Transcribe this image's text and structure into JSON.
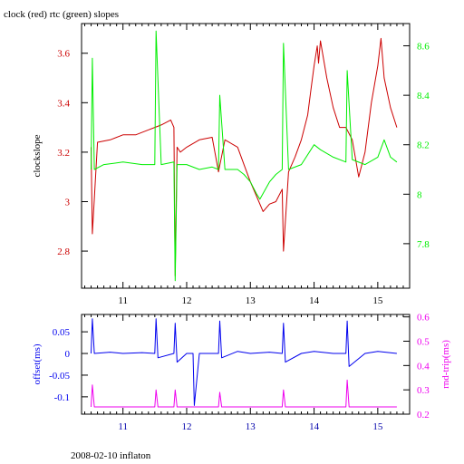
{
  "figure": {
    "title": "clock (red) rtc (green) slopes",
    "footer": "2008-02-10 inflaton"
  },
  "colors": {
    "clock": "#cc0000",
    "rtc": "#00ee00",
    "offset": "#0000ee",
    "rndtrip": "#ee00ee",
    "frame": "#000000"
  },
  "chart_data": [
    {
      "type": "line",
      "title": "clock (red) rtc (green) slopes",
      "xlabel": "",
      "ylabel": "clockslope",
      "y2label": "",
      "xlim": [
        10.35,
        15.5
      ],
      "ylim": [
        2.65,
        3.72
      ],
      "y2lim": [
        7.62,
        8.69
      ],
      "x_ticks": [
        11,
        12,
        13,
        14,
        15
      ],
      "y_ticks": [
        2.8,
        3,
        3.2,
        3.4,
        3.6
      ],
      "y_tick_labels": [
        "2.8",
        "3",
        "3.2",
        "3.4",
        "3.6"
      ],
      "y2_ticks": [
        7.8,
        8,
        8.2,
        8.4,
        8.6
      ],
      "y2_tick_labels": [
        "7.8",
        "8",
        "8.2",
        "8.4",
        "8.6"
      ],
      "series": [
        {
          "axis": "left",
          "color": "#cc0000",
          "x": [
            10.5,
            10.52,
            10.6,
            10.8,
            11.0,
            11.2,
            11.4,
            11.5,
            11.6,
            11.75,
            11.8,
            11.82,
            11.85,
            11.9,
            12.0,
            12.2,
            12.4,
            12.5,
            12.6,
            12.8,
            12.9,
            13.0,
            13.1,
            13.2,
            13.3,
            13.4,
            13.5,
            13.52,
            13.6,
            13.7,
            13.8,
            13.9,
            13.95,
            14.0,
            14.05,
            14.07,
            14.1,
            14.2,
            14.3,
            14.4,
            14.5,
            14.6,
            14.7,
            14.8,
            14.9,
            15.0,
            15.05,
            15.1,
            15.2,
            15.3
          ],
          "values": [
            3.22,
            2.87,
            3.24,
            3.25,
            3.27,
            3.27,
            3.29,
            3.3,
            3.31,
            3.33,
            3.3,
            2.7,
            3.22,
            3.2,
            3.22,
            3.25,
            3.26,
            3.12,
            3.25,
            3.22,
            3.15,
            3.08,
            3.02,
            2.96,
            2.99,
            3.0,
            3.05,
            2.8,
            3.12,
            3.18,
            3.25,
            3.35,
            3.45,
            3.55,
            3.63,
            3.56,
            3.65,
            3.5,
            3.38,
            3.3,
            3.3,
            3.25,
            3.1,
            3.2,
            3.4,
            3.55,
            3.66,
            3.5,
            3.38,
            3.3
          ]
        },
        {
          "axis": "right",
          "color": "#00ee00",
          "x": [
            10.5,
            10.52,
            10.55,
            10.7,
            11.0,
            11.3,
            11.5,
            11.52,
            11.6,
            11.8,
            11.82,
            11.85,
            12.0,
            12.2,
            12.4,
            12.5,
            12.52,
            12.6,
            12.8,
            12.9,
            13.0,
            13.1,
            13.15,
            13.3,
            13.4,
            13.5,
            13.52,
            13.6,
            13.8,
            14.0,
            14.1,
            14.3,
            14.5,
            14.52,
            14.6,
            14.8,
            15.0,
            15.1,
            15.2,
            15.3
          ],
          "values": [
            8.1,
            8.55,
            8.1,
            8.12,
            8.13,
            8.12,
            8.12,
            8.66,
            8.12,
            8.13,
            7.65,
            8.12,
            8.12,
            8.1,
            8.11,
            8.1,
            8.4,
            8.1,
            8.1,
            8.08,
            8.05,
            8.0,
            7.98,
            8.05,
            8.08,
            8.1,
            8.61,
            8.1,
            8.12,
            8.2,
            8.18,
            8.15,
            8.13,
            8.5,
            8.14,
            8.12,
            8.15,
            8.22,
            8.15,
            8.13
          ]
        }
      ]
    },
    {
      "type": "line",
      "title": "",
      "xlabel": "",
      "ylabel": "offset(ms)",
      "y2label": "rnd-trip(ms)",
      "xlim": [
        10.35,
        15.5
      ],
      "ylim": [
        -0.14,
        0.09
      ],
      "y2lim": [
        0.2,
        0.61
      ],
      "x_ticks": [
        11,
        12,
        13,
        14,
        15
      ],
      "y_ticks": [
        -0.1,
        -0.05,
        0,
        0.05
      ],
      "y_tick_labels": [
        "-0.1",
        "-0.05",
        "0",
        "0.05"
      ],
      "y2_ticks": [
        0.2,
        0.3,
        0.4,
        0.5,
        0.6
      ],
      "y2_tick_labels": [
        "0.2",
        "0.3",
        "0.4",
        "0.5",
        "0.6"
      ],
      "series": [
        {
          "axis": "left",
          "color": "#0000ee",
          "x": [
            10.5,
            10.52,
            10.55,
            10.8,
            11.0,
            11.3,
            11.5,
            11.52,
            11.55,
            11.8,
            11.82,
            11.85,
            12.0,
            12.1,
            12.12,
            12.2,
            12.5,
            12.52,
            12.55,
            12.8,
            13.0,
            13.3,
            13.5,
            13.52,
            13.55,
            13.8,
            14.0,
            14.3,
            14.5,
            14.52,
            14.55,
            14.8,
            15.0,
            15.3
          ],
          "values": [
            0.0,
            0.08,
            0.0,
            0.003,
            0.0,
            0.002,
            0.0,
            0.08,
            -0.01,
            0.0,
            0.07,
            -0.02,
            0.0,
            0.0,
            -0.12,
            0.0,
            0.0,
            0.075,
            -0.01,
            0.005,
            0.0,
            0.003,
            0.0,
            0.07,
            -0.02,
            0.0,
            0.005,
            0.0,
            0.0,
            0.075,
            -0.03,
            0.0,
            0.005,
            0.0
          ]
        },
        {
          "axis": "right",
          "color": "#ee00ee",
          "x": [
            10.5,
            10.52,
            10.55,
            11.0,
            11.5,
            11.52,
            11.55,
            11.8,
            11.82,
            11.85,
            12.0,
            12.5,
            12.52,
            12.55,
            13.0,
            13.5,
            13.52,
            13.55,
            14.0,
            14.5,
            14.52,
            14.55,
            15.0,
            15.3
          ],
          "values": [
            0.23,
            0.32,
            0.23,
            0.23,
            0.23,
            0.3,
            0.23,
            0.23,
            0.3,
            0.23,
            0.23,
            0.23,
            0.29,
            0.23,
            0.23,
            0.23,
            0.3,
            0.23,
            0.23,
            0.23,
            0.34,
            0.23,
            0.23,
            0.23
          ]
        }
      ]
    }
  ]
}
